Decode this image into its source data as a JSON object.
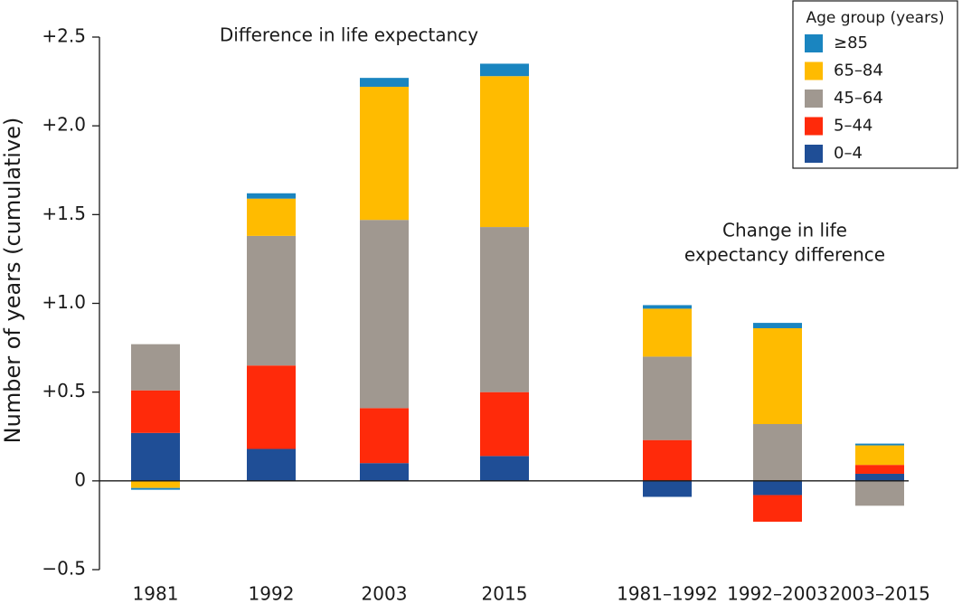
{
  "chart_data": {
    "type": "stacked-bar",
    "y_label": "Number of years (cumulative)",
    "annotations": [
      "Difference in life expectancy",
      "Change in life",
      "expectancy difference"
    ],
    "legend_title": "Age group (years)",
    "legend_position": "upper right",
    "categories": [
      "1981",
      "1992",
      "2003",
      "2015",
      "1981–1992",
      "1992–2003",
      "2003–2015"
    ],
    "series": [
      {
        "name": "0–4",
        "color": "#1f4e96",
        "values": [
          0.27,
          0.18,
          0.1,
          0.14,
          -0.09,
          -0.08,
          0.04
        ]
      },
      {
        "name": "5–44",
        "color": "#ff2a0a",
        "values": [
          0.24,
          0.47,
          0.31,
          0.36,
          0.23,
          -0.15,
          0.05
        ]
      },
      {
        "name": "45–64",
        "color": "#a09890",
        "values": [
          0.26,
          0.73,
          1.06,
          0.93,
          0.47,
          0.32,
          -0.14
        ]
      },
      {
        "name": "65–84",
        "color": "#ffbb00",
        "values": [
          -0.04,
          0.21,
          0.75,
          0.85,
          0.27,
          0.54,
          0.11
        ]
      },
      {
        "name": "≥85",
        "color": "#1a85c0",
        "values": [
          -0.01,
          0.03,
          0.05,
          0.07,
          0.02,
          0.03,
          0.01
        ]
      }
    ],
    "ylim": [
      -0.5,
      2.5
    ],
    "yticks": [
      {
        "value": -0.5,
        "label": "−0.5"
      },
      0,
      {
        "value": 0.5,
        "label": "+0.5"
      },
      {
        "value": 1.0,
        "label": "+1.0"
      },
      {
        "value": 1.5,
        "label": "+1.5"
      },
      {
        "value": 2.0,
        "label": "+2.0"
      },
      {
        "value": 2.5,
        "label": "+2.5"
      }
    ]
  }
}
